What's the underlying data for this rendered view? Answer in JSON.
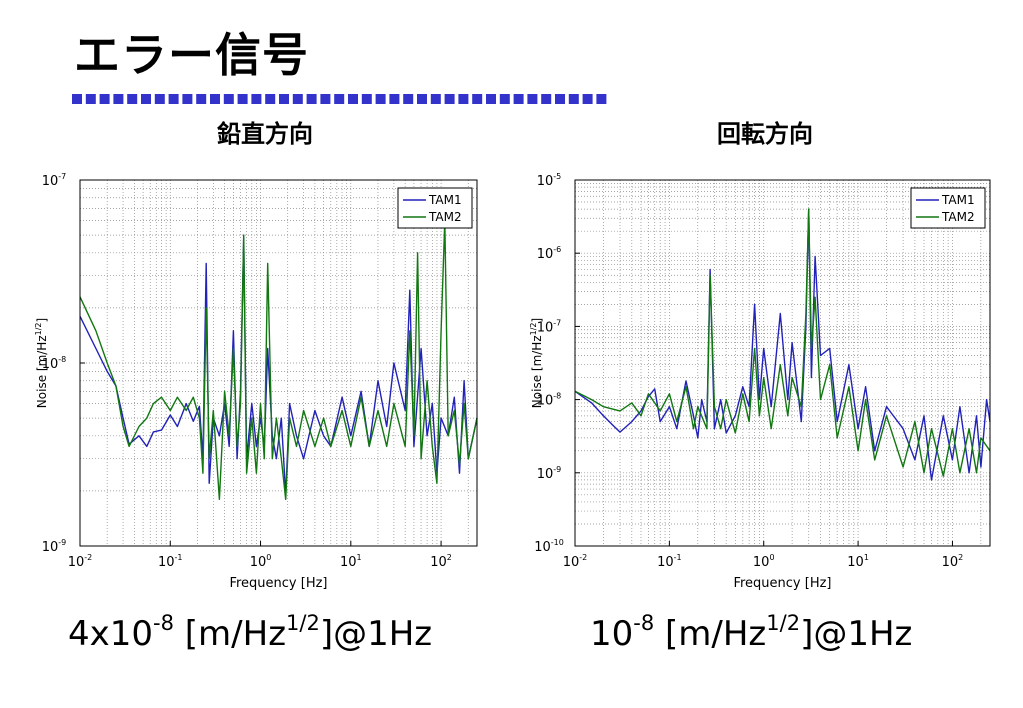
{
  "slide": {
    "title": "エラー信号",
    "accent_color": "#3333cc"
  },
  "chart_data": [
    {
      "type": "line",
      "heading": "鉛直方向",
      "xlabel": "Frequency [Hz]",
      "ylabel": "Noise [m/Hz^1/2]",
      "xscale": "log",
      "yscale": "log",
      "xlim": [
        0.01,
        250
      ],
      "ylim": [
        1e-09,
        1e-07
      ],
      "grid": true,
      "legend_position": "top-right",
      "x_ticks": [
        {
          "value": 0.01,
          "base": "10",
          "exp": "-2"
        },
        {
          "value": 0.1,
          "base": "10",
          "exp": "-1"
        },
        {
          "value": 1,
          "base": "10",
          "exp": "0"
        },
        {
          "value": 10,
          "base": "10",
          "exp": "1"
        },
        {
          "value": 100,
          "base": "10",
          "exp": "2"
        }
      ],
      "y_ticks": [
        {
          "value": 1e-09,
          "base": "10",
          "exp": "-9"
        },
        {
          "value": 1e-08,
          "base": "10",
          "exp": "-8"
        },
        {
          "value": 1e-07,
          "base": "10",
          "exp": "-7"
        }
      ],
      "series": [
        {
          "name": "TAM1",
          "color": "#2222bb",
          "points": [
            [
              0.01,
              1.8e-08
            ],
            [
              0.015,
              1.2e-08
            ],
            [
              0.02,
              9e-09
            ],
            [
              0.025,
              7.5e-09
            ],
            [
              0.03,
              5e-09
            ],
            [
              0.035,
              3.6e-09
            ],
            [
              0.045,
              4e-09
            ],
            [
              0.055,
              3.5e-09
            ],
            [
              0.065,
              4.2e-09
            ],
            [
              0.08,
              4.3e-09
            ],
            [
              0.1,
              5.2e-09
            ],
            [
              0.12,
              4.5e-09
            ],
            [
              0.15,
              6e-09
            ],
            [
              0.18,
              4.8e-09
            ],
            [
              0.21,
              5.8e-09
            ],
            [
              0.23,
              3e-09
            ],
            [
              0.25,
              3.5e-08
            ],
            [
              0.27,
              2.2e-09
            ],
            [
              0.3,
              5e-09
            ],
            [
              0.35,
              4e-09
            ],
            [
              0.4,
              6e-09
            ],
            [
              0.45,
              3.5e-09
            ],
            [
              0.5,
              1.5e-08
            ],
            [
              0.55,
              3e-09
            ],
            [
              0.6,
              7e-09
            ],
            [
              0.65,
              4.8e-08
            ],
            [
              0.7,
              3e-09
            ],
            [
              0.8,
              6e-09
            ],
            [
              0.9,
              3.5e-09
            ],
            [
              1,
              5e-09
            ],
            [
              1.1,
              3.5e-09
            ],
            [
              1.2,
              1.2e-08
            ],
            [
              1.35,
              4e-09
            ],
            [
              1.5,
              3e-09
            ],
            [
              1.7,
              5e-09
            ],
            [
              1.9,
              1.9e-09
            ],
            [
              2.1,
              6e-09
            ],
            [
              2.5,
              4e-09
            ],
            [
              3,
              3e-09
            ],
            [
              4,
              5.5e-09
            ],
            [
              5,
              4e-09
            ],
            [
              6,
              3.5e-09
            ],
            [
              8,
              6.5e-09
            ],
            [
              10,
              4e-09
            ],
            [
              13,
              7e-09
            ],
            [
              16,
              3.5e-09
            ],
            [
              20,
              8e-09
            ],
            [
              25,
              4.5e-09
            ],
            [
              30,
              1e-08
            ],
            [
              40,
              5.5e-09
            ],
            [
              45,
              2.5e-08
            ],
            [
              50,
              3.5e-09
            ],
            [
              60,
              1.2e-08
            ],
            [
              70,
              4e-09
            ],
            [
              80,
              6e-09
            ],
            [
              90,
              2.5e-09
            ],
            [
              100,
              5e-09
            ],
            [
              120,
              4e-09
            ],
            [
              140,
              6.5e-09
            ],
            [
              160,
              2.5e-09
            ],
            [
              180,
              8e-09
            ],
            [
              200,
              3e-09
            ],
            [
              250,
              5e-09
            ]
          ]
        },
        {
          "name": "TAM2",
          "color": "#117711",
          "points": [
            [
              0.01,
              2.3e-08
            ],
            [
              0.015,
              1.5e-08
            ],
            [
              0.02,
              1e-08
            ],
            [
              0.025,
              7.5e-09
            ],
            [
              0.03,
              4.5e-09
            ],
            [
              0.035,
              3.5e-09
            ],
            [
              0.045,
              4.5e-09
            ],
            [
              0.055,
              5e-09
            ],
            [
              0.065,
              6e-09
            ],
            [
              0.08,
              6.5e-09
            ],
            [
              0.1,
              5.5e-09
            ],
            [
              0.12,
              6.5e-09
            ],
            [
              0.15,
              5.5e-09
            ],
            [
              0.18,
              6.5e-09
            ],
            [
              0.21,
              5e-09
            ],
            [
              0.23,
              2.5e-09
            ],
            [
              0.25,
              2e-08
            ],
            [
              0.27,
              3e-09
            ],
            [
              0.3,
              5.5e-09
            ],
            [
              0.35,
              1.8e-09
            ],
            [
              0.4,
              7e-09
            ],
            [
              0.45,
              4e-09
            ],
            [
              0.5,
              1.2e-08
            ],
            [
              0.55,
              3.5e-09
            ],
            [
              0.6,
              6e-09
            ],
            [
              0.65,
              5e-08
            ],
            [
              0.7,
              2.5e-09
            ],
            [
              0.8,
              5e-09
            ],
            [
              0.9,
              2.5e-09
            ],
            [
              1,
              6e-09
            ],
            [
              1.1,
              3e-09
            ],
            [
              1.2,
              3.5e-08
            ],
            [
              1.35,
              3e-09
            ],
            [
              1.5,
              5e-09
            ],
            [
              1.7,
              3e-09
            ],
            [
              1.9,
              1.8e-09
            ],
            [
              2.1,
              5e-09
            ],
            [
              2.5,
              3.5e-09
            ],
            [
              3,
              5.5e-09
            ],
            [
              4,
              3.5e-09
            ],
            [
              5,
              5e-09
            ],
            [
              6,
              3.5e-09
            ],
            [
              8,
              5.5e-09
            ],
            [
              10,
              3.5e-09
            ],
            [
              13,
              6.5e-09
            ],
            [
              16,
              3.5e-09
            ],
            [
              20,
              5.5e-09
            ],
            [
              25,
              3.5e-09
            ],
            [
              30,
              6e-09
            ],
            [
              40,
              3.5e-09
            ],
            [
              45,
              1.5e-08
            ],
            [
              50,
              4e-09
            ],
            [
              55,
              4e-08
            ],
            [
              60,
              3e-09
            ],
            [
              70,
              8e-09
            ],
            [
              80,
              3.5e-09
            ],
            [
              90,
              2.2e-09
            ],
            [
              100,
              1.5e-08
            ],
            [
              110,
              6e-08
            ],
            [
              120,
              4e-09
            ],
            [
              140,
              5.5e-09
            ],
            [
              160,
              2.8e-09
            ],
            [
              180,
              6e-09
            ],
            [
              200,
              3e-09
            ],
            [
              250,
              5e-09
            ]
          ]
        }
      ]
    },
    {
      "type": "line",
      "heading": "回転方向",
      "xlabel": "Frequency [Hz]",
      "ylabel": "Noise [m/Hz^1/2]",
      "xscale": "log",
      "yscale": "log",
      "xlim": [
        0.01,
        250
      ],
      "ylim": [
        1e-10,
        1e-05
      ],
      "grid": true,
      "legend_position": "top-right",
      "x_ticks": [
        {
          "value": 0.01,
          "base": "10",
          "exp": "-2"
        },
        {
          "value": 0.1,
          "base": "10",
          "exp": "-1"
        },
        {
          "value": 1,
          "base": "10",
          "exp": "0"
        },
        {
          "value": 10,
          "base": "10",
          "exp": "1"
        },
        {
          "value": 100,
          "base": "10",
          "exp": "2"
        }
      ],
      "y_ticks": [
        {
          "value": 1e-10,
          "base": "10",
          "exp": "-10"
        },
        {
          "value": 1e-09,
          "base": "10",
          "exp": "-9"
        },
        {
          "value": 1e-08,
          "base": "10",
          "exp": "-8"
        },
        {
          "value": 1e-07,
          "base": "10",
          "exp": "-7"
        },
        {
          "value": 1e-06,
          "base": "10",
          "exp": "-6"
        },
        {
          "value": 1e-05,
          "base": "10",
          "exp": "-5"
        }
      ],
      "series": [
        {
          "name": "TAM1",
          "color": "#2222bb",
          "points": [
            [
              0.01,
              1.3e-08
            ],
            [
              0.015,
              9e-09
            ],
            [
              0.02,
              6e-09
            ],
            [
              0.025,
              4.5e-09
            ],
            [
              0.03,
              3.6e-09
            ],
            [
              0.04,
              5e-09
            ],
            [
              0.05,
              7e-09
            ],
            [
              0.06,
              1.1e-08
            ],
            [
              0.07,
              1.4e-08
            ],
            [
              0.08,
              5e-09
            ],
            [
              0.1,
              8e-09
            ],
            [
              0.12,
              4e-09
            ],
            [
              0.15,
              1.8e-08
            ],
            [
              0.18,
              6e-09
            ],
            [
              0.2,
              3e-09
            ],
            [
              0.22,
              1e-08
            ],
            [
              0.25,
              5e-09
            ],
            [
              0.27,
              6e-07
            ],
            [
              0.3,
              4e-09
            ],
            [
              0.35,
              1e-08
            ],
            [
              0.4,
              3.5e-09
            ],
            [
              0.5,
              6e-09
            ],
            [
              0.6,
              1.5e-08
            ],
            [
              0.7,
              8e-09
            ],
            [
              0.8,
              2e-07
            ],
            [
              0.9,
              1e-08
            ],
            [
              1,
              5e-08
            ],
            [
              1.2,
              8e-09
            ],
            [
              1.5,
              1.5e-07
            ],
            [
              1.8,
              1e-08
            ],
            [
              2,
              6e-08
            ],
            [
              2.5,
              5e-09
            ],
            [
              2.8,
              1e-07
            ],
            [
              3,
              4e-06
            ],
            [
              3.2,
              2e-08
            ],
            [
              3.5,
              9e-07
            ],
            [
              4,
              4e-08
            ],
            [
              5,
              5e-08
            ],
            [
              6,
              5e-09
            ],
            [
              8,
              3e-08
            ],
            [
              10,
              4e-09
            ],
            [
              12,
              1.5e-08
            ],
            [
              15,
              2e-09
            ],
            [
              20,
              8e-09
            ],
            [
              30,
              4e-09
            ],
            [
              40,
              1.5e-09
            ],
            [
              50,
              6e-09
            ],
            [
              60,
              8e-10
            ],
            [
              80,
              6e-09
            ],
            [
              100,
              1.5e-09
            ],
            [
              120,
              8e-09
            ],
            [
              150,
              1e-09
            ],
            [
              180,
              6e-09
            ],
            [
              200,
              1.2e-09
            ],
            [
              230,
              1e-08
            ],
            [
              250,
              5e-09
            ]
          ]
        },
        {
          "name": "TAM2",
          "color": "#117711",
          "points": [
            [
              0.01,
              1.3e-08
            ],
            [
              0.015,
              1e-08
            ],
            [
              0.02,
              8e-09
            ],
            [
              0.03,
              7e-09
            ],
            [
              0.04,
              9e-09
            ],
            [
              0.05,
              6e-09
            ],
            [
              0.06,
              1.2e-08
            ],
            [
              0.07,
              9e-09
            ],
            [
              0.08,
              7e-09
            ],
            [
              0.1,
              1.2e-08
            ],
            [
              0.12,
              5e-09
            ],
            [
              0.15,
              1.5e-08
            ],
            [
              0.18,
              4e-09
            ],
            [
              0.2,
              8e-09
            ],
            [
              0.25,
              4e-09
            ],
            [
              0.27,
              5e-07
            ],
            [
              0.3,
              8e-09
            ],
            [
              0.35,
              4e-09
            ],
            [
              0.4,
              1e-08
            ],
            [
              0.5,
              3.5e-09
            ],
            [
              0.6,
              1.2e-08
            ],
            [
              0.7,
              5e-09
            ],
            [
              0.8,
              5e-08
            ],
            [
              0.9,
              6e-09
            ],
            [
              1,
              2e-08
            ],
            [
              1.2,
              4e-09
            ],
            [
              1.5,
              3e-08
            ],
            [
              1.8,
              6e-09
            ],
            [
              2,
              2e-08
            ],
            [
              2.5,
              8e-09
            ],
            [
              2.8,
              1.5e-07
            ],
            [
              3,
              4e-06
            ],
            [
              3.2,
              5e-08
            ],
            [
              3.5,
              2.5e-07
            ],
            [
              4,
              1e-08
            ],
            [
              5,
              3e-08
            ],
            [
              6,
              3e-09
            ],
            [
              8,
              1.5e-08
            ],
            [
              10,
              2e-09
            ],
            [
              12,
              1e-08
            ],
            [
              15,
              1.5e-09
            ],
            [
              20,
              6e-09
            ],
            [
              30,
              1.2e-09
            ],
            [
              40,
              5e-09
            ],
            [
              50,
              1e-09
            ],
            [
              60,
              4e-09
            ],
            [
              80,
              9e-10
            ],
            [
              100,
              4e-09
            ],
            [
              120,
              1e-09
            ],
            [
              150,
              4e-09
            ],
            [
              180,
              1e-09
            ],
            [
              200,
              3e-09
            ],
            [
              250,
              2e-09
            ]
          ]
        }
      ]
    }
  ],
  "noise_values": [
    {
      "prefix": "4x10",
      "exp": "-8",
      "unit": " [m/Hz",
      "unit_exp": "1/2",
      "suffix": "]@1Hz"
    },
    {
      "prefix": "10",
      "exp": "-8",
      "unit": " [m/Hz",
      "unit_exp": "1/2",
      "suffix": "]@1Hz"
    }
  ]
}
